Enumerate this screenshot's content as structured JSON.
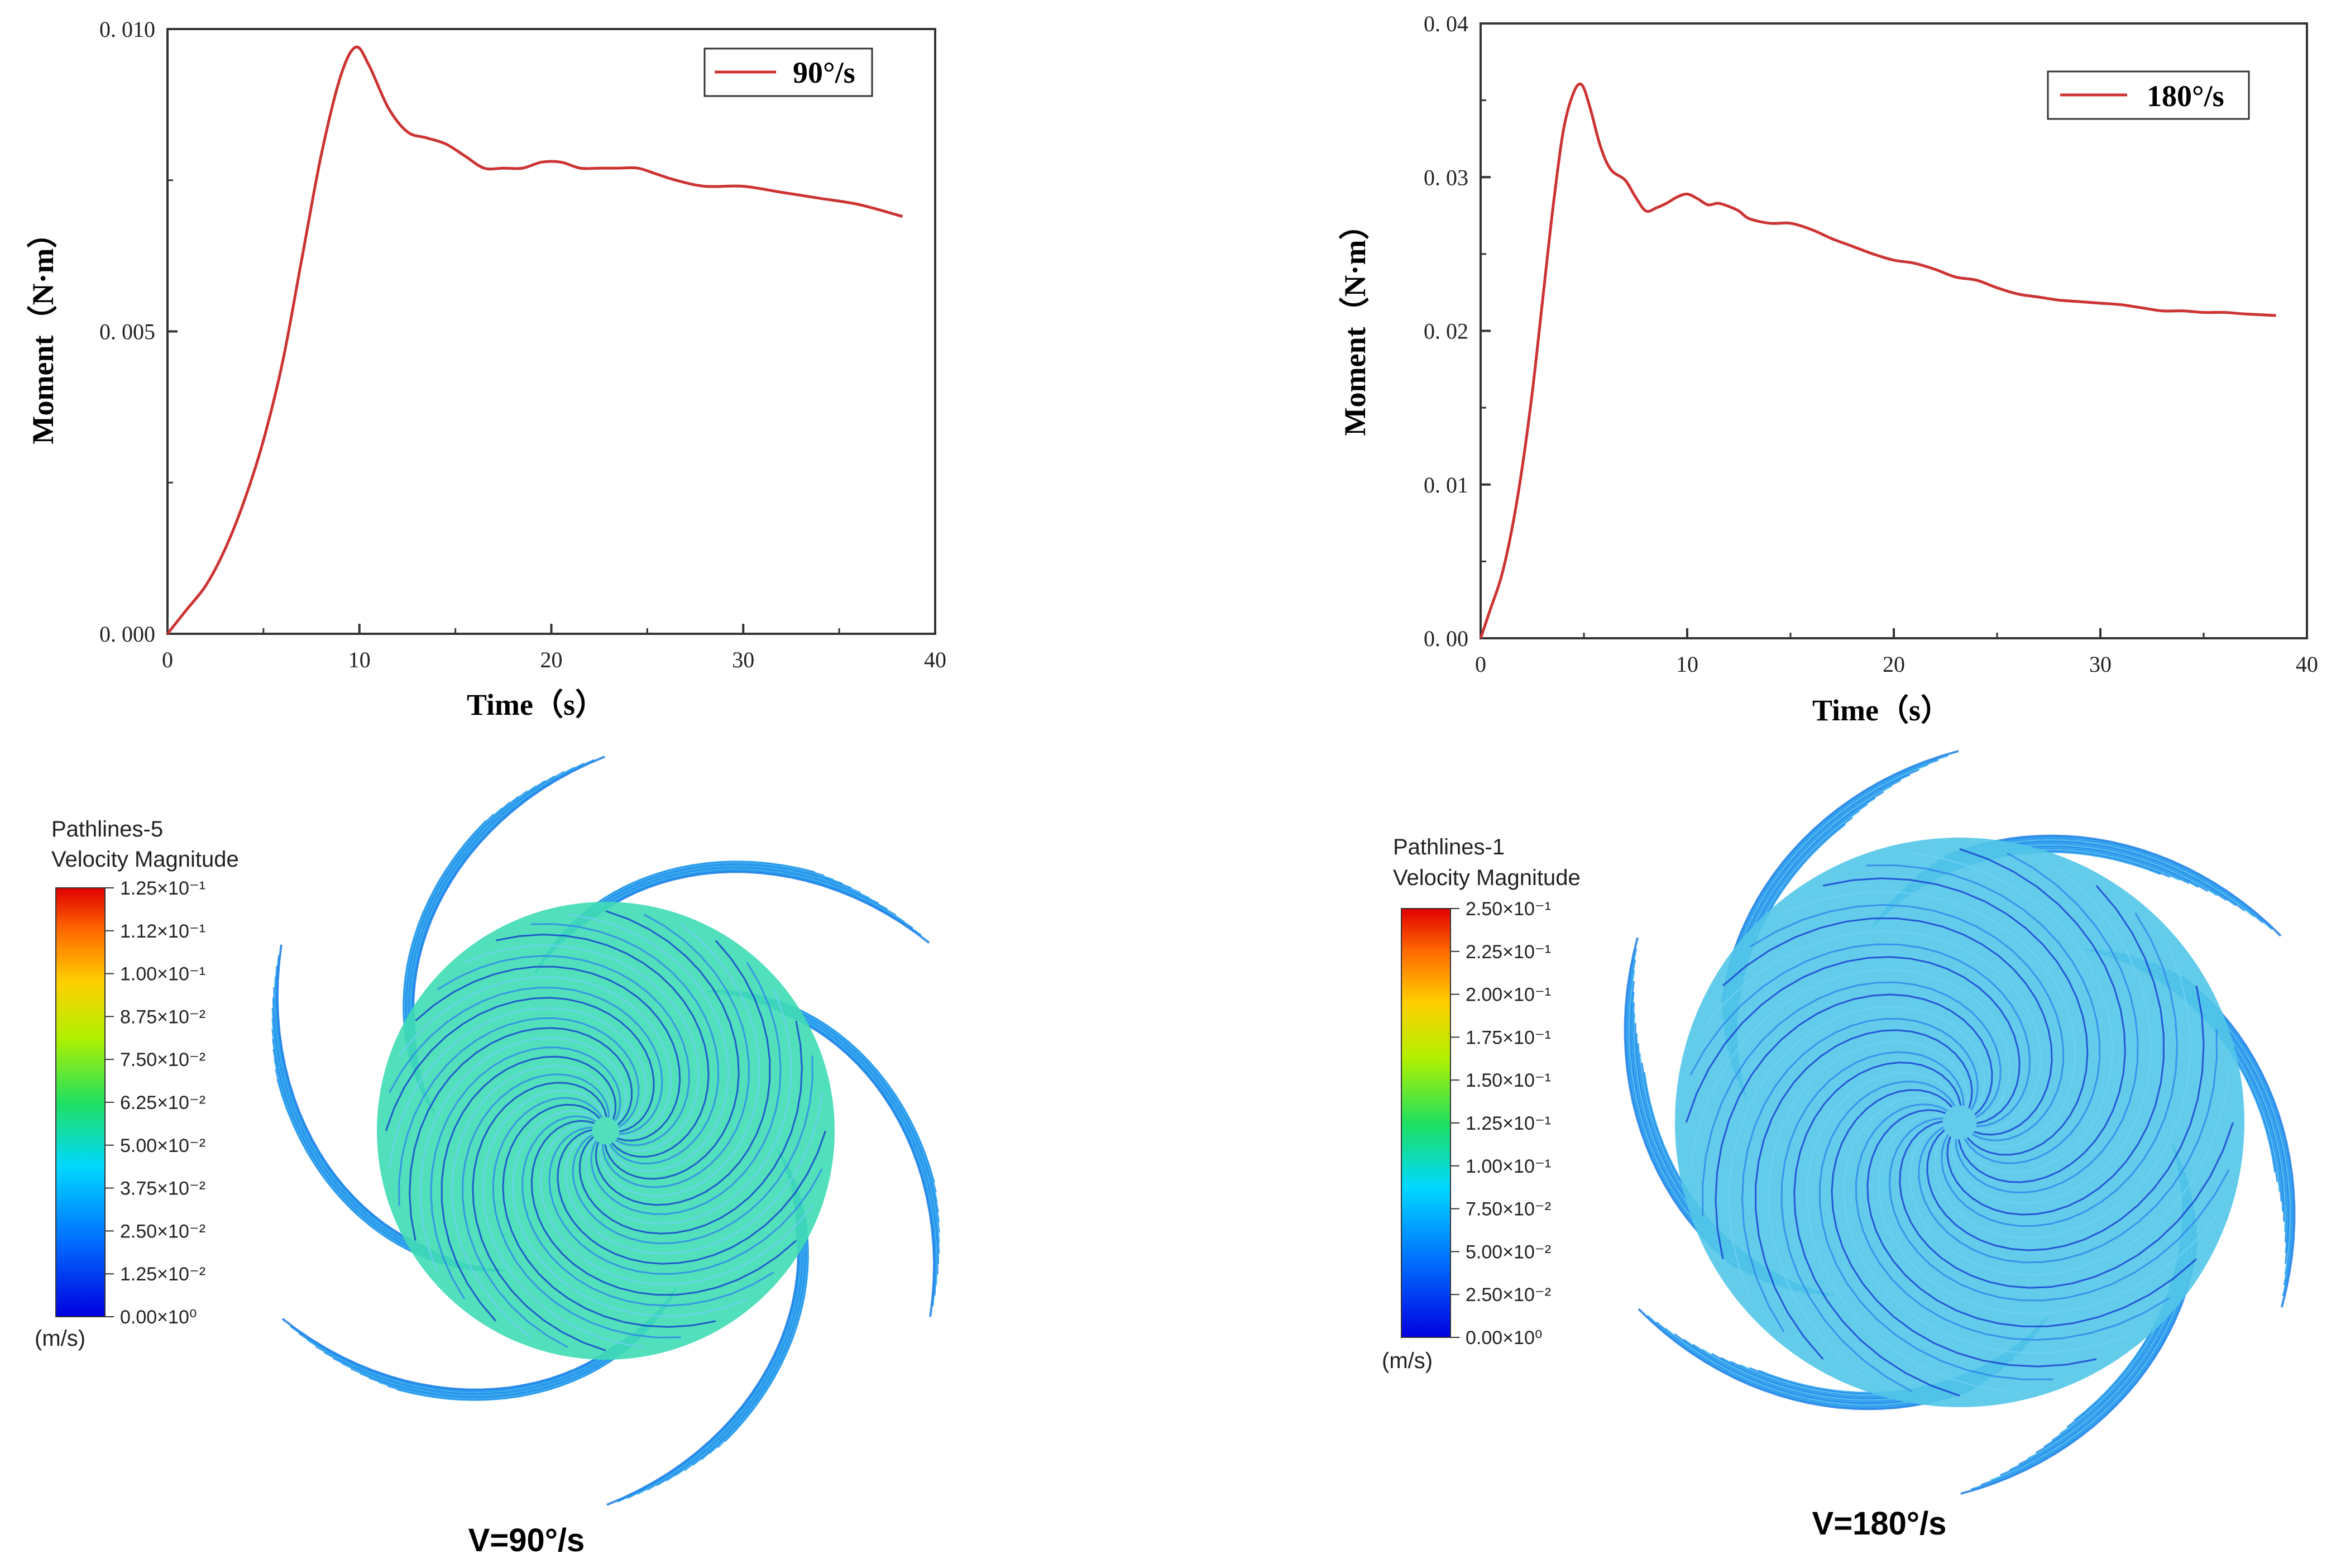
{
  "chart_data": [
    {
      "type": "line",
      "xlabel": "Time（s）",
      "ylabel": "Moment（N·m）",
      "xlim": [
        0,
        40
      ],
      "ylim": [
        0,
        0.01
      ],
      "x_ticks": [
        0,
        10,
        20,
        30,
        40
      ],
      "y_ticks": [
        0.0,
        0.005,
        0.01
      ],
      "y_tick_labels": [
        "0. 000",
        "0. 005",
        "0. 010"
      ],
      "legend_position": "top-right",
      "series": [
        {
          "name": "90°/s",
          "color": "#cc3333",
          "x": [
            0,
            1,
            2,
            3,
            4,
            5,
            6,
            7,
            8,
            9,
            9.8,
            10.5,
            11.5,
            12.5,
            13.5,
            14.5,
            15.5,
            16.5,
            17.5,
            18.5,
            19.5,
            20.5,
            21.5,
            22.5,
            23.5,
            24.5,
            25.5,
            26.5,
            28,
            30,
            32,
            34,
            36,
            38.3
          ],
          "values": [
            0,
            0.0004,
            0.0008,
            0.0014,
            0.0022,
            0.0032,
            0.0045,
            0.0062,
            0.0079,
            0.0092,
            0.0097,
            0.0094,
            0.0087,
            0.0083,
            0.0082,
            0.0081,
            0.0079,
            0.0077,
            0.0077,
            0.0077,
            0.0078,
            0.0078,
            0.0077,
            0.0077,
            0.0077,
            0.0077,
            0.0076,
            0.0075,
            0.0074,
            0.0074,
            0.0073,
            0.0072,
            0.0071,
            0.0069
          ]
        }
      ]
    },
    {
      "type": "line",
      "xlabel": "Time（s）",
      "ylabel": "Moment（N·m）",
      "xlim": [
        0,
        40
      ],
      "ylim": [
        0,
        0.04
      ],
      "x_ticks": [
        0,
        10,
        20,
        30,
        40
      ],
      "y_ticks": [
        0.0,
        0.01,
        0.02,
        0.03,
        0.04
      ],
      "y_tick_labels": [
        "0. 00",
        "0. 01",
        "0. 02",
        "0. 03",
        "0. 04"
      ],
      "legend_position": "top-right",
      "series": [
        {
          "name": "180°/s",
          "color": "#cc3333",
          "x": [
            0,
            0.5,
            1,
            1.5,
            2,
            2.5,
            3,
            3.5,
            4,
            4.5,
            4.9,
            5.3,
            5.8,
            6.3,
            7,
            7.5,
            8,
            8.5,
            9,
            9.5,
            10,
            10.5,
            11,
            11.5,
            12,
            12.5,
            13,
            14,
            15,
            16,
            17,
            18,
            19,
            20,
            21,
            22,
            23,
            24,
            25,
            26,
            27,
            28,
            29,
            30,
            31,
            32,
            33,
            34,
            35,
            36,
            37,
            38.5
          ],
          "values": [
            0,
            0.002,
            0.004,
            0.007,
            0.011,
            0.016,
            0.022,
            0.028,
            0.033,
            0.0355,
            0.036,
            0.0345,
            0.032,
            0.0305,
            0.0298,
            0.0287,
            0.0278,
            0.028,
            0.0283,
            0.0287,
            0.0289,
            0.0286,
            0.0282,
            0.0283,
            0.0281,
            0.0278,
            0.0273,
            0.027,
            0.027,
            0.0266,
            0.026,
            0.0255,
            0.025,
            0.0246,
            0.0244,
            0.024,
            0.0235,
            0.0233,
            0.0228,
            0.0224,
            0.0222,
            0.022,
            0.0219,
            0.0218,
            0.0217,
            0.0215,
            0.0213,
            0.0213,
            0.0212,
            0.0212,
            0.0211,
            0.021
          ]
        }
      ]
    }
  ],
  "contours": [
    {
      "title_line1": "Pathlines-5",
      "title_line2": "Velocity Magnitude",
      "unit": "(m/s)",
      "labels": [
        "1.25×10⁻¹",
        "1.12×10⁻¹",
        "1.00×10⁻¹",
        "8.75×10⁻²",
        "7.50×10⁻²",
        "6.25×10⁻²",
        "5.00×10⁻²",
        "3.75×10⁻²",
        "2.50×10⁻²",
        "1.25×10⁻²",
        "0.00×10⁰"
      ],
      "caption": "V=90°/s",
      "disk_color": "#3fdcb5",
      "arm_color": "#2aa6f0"
    },
    {
      "title_line1": "Pathlines-1",
      "title_line2": "Velocity Magnitude",
      "unit": "(m/s)",
      "labels": [
        "2.50×10⁻¹",
        "2.25×10⁻¹",
        "2.00×10⁻¹",
        "1.75×10⁻¹",
        "1.50×10⁻¹",
        "1.25×10⁻¹",
        "1.00×10⁻¹",
        "7.50×10⁻²",
        "5.00×10⁻²",
        "2.50×10⁻²",
        "0.00×10⁰"
      ],
      "caption": "V=180°/s",
      "disk_color": "#52c7e8",
      "arm_color": "#2aa6f0"
    }
  ]
}
